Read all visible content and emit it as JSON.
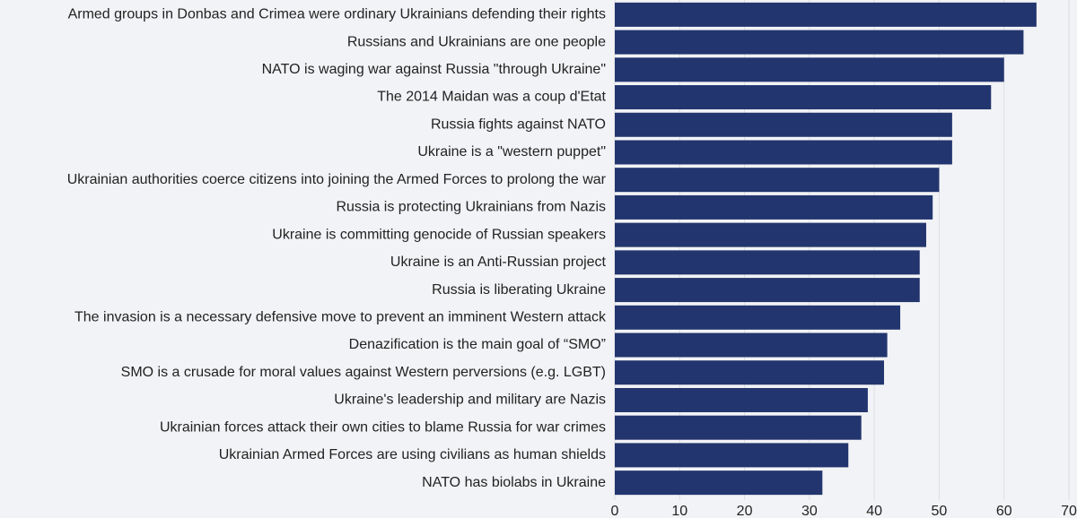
{
  "chart_data": {
    "type": "bar",
    "orientation": "horizontal",
    "categories": [
      "Armed groups in Donbas and Crimea were ordinary Ukrainians defending their rights",
      "Russians and Ukrainians are one people",
      "NATO is waging war against Russia \"through Ukraine\"",
      "The 2014 Maidan was a coup d'Etat",
      "Russia fights against NATO",
      "Ukraine is a \"western puppet\"",
      "Ukrainian authorities coerce citizens into joining the Armed Forces to prolong the war",
      "Russia is protecting Ukrainians from Nazis",
      "Ukraine is committing genocide of Russian speakers",
      "Ukraine is an Anti-Russian project",
      "Russia is liberating Ukraine",
      "The invasion is a necessary defensive move to prevent an imminent Western attack",
      "Denazification is the main goal of “SMO”",
      "SMO is a crusade for moral values against Western perversions (e.g. LGBT)",
      "Ukraine's leadership and military are Nazis",
      "Ukrainian forces attack their own cities to blame Russia for war crimes",
      "Ukrainian Armed Forces are using civilians as human shields",
      "NATO has biolabs in Ukraine"
    ],
    "values": [
      65,
      63,
      60,
      58,
      52,
      52,
      50,
      49,
      48,
      47,
      47,
      44,
      42,
      41.5,
      39,
      38,
      36,
      32
    ],
    "color": "#22356e",
    "xlim": [
      0,
      70
    ],
    "xticks": [
      0,
      10,
      20,
      30,
      40,
      50,
      60,
      70
    ],
    "grid": true
  }
}
